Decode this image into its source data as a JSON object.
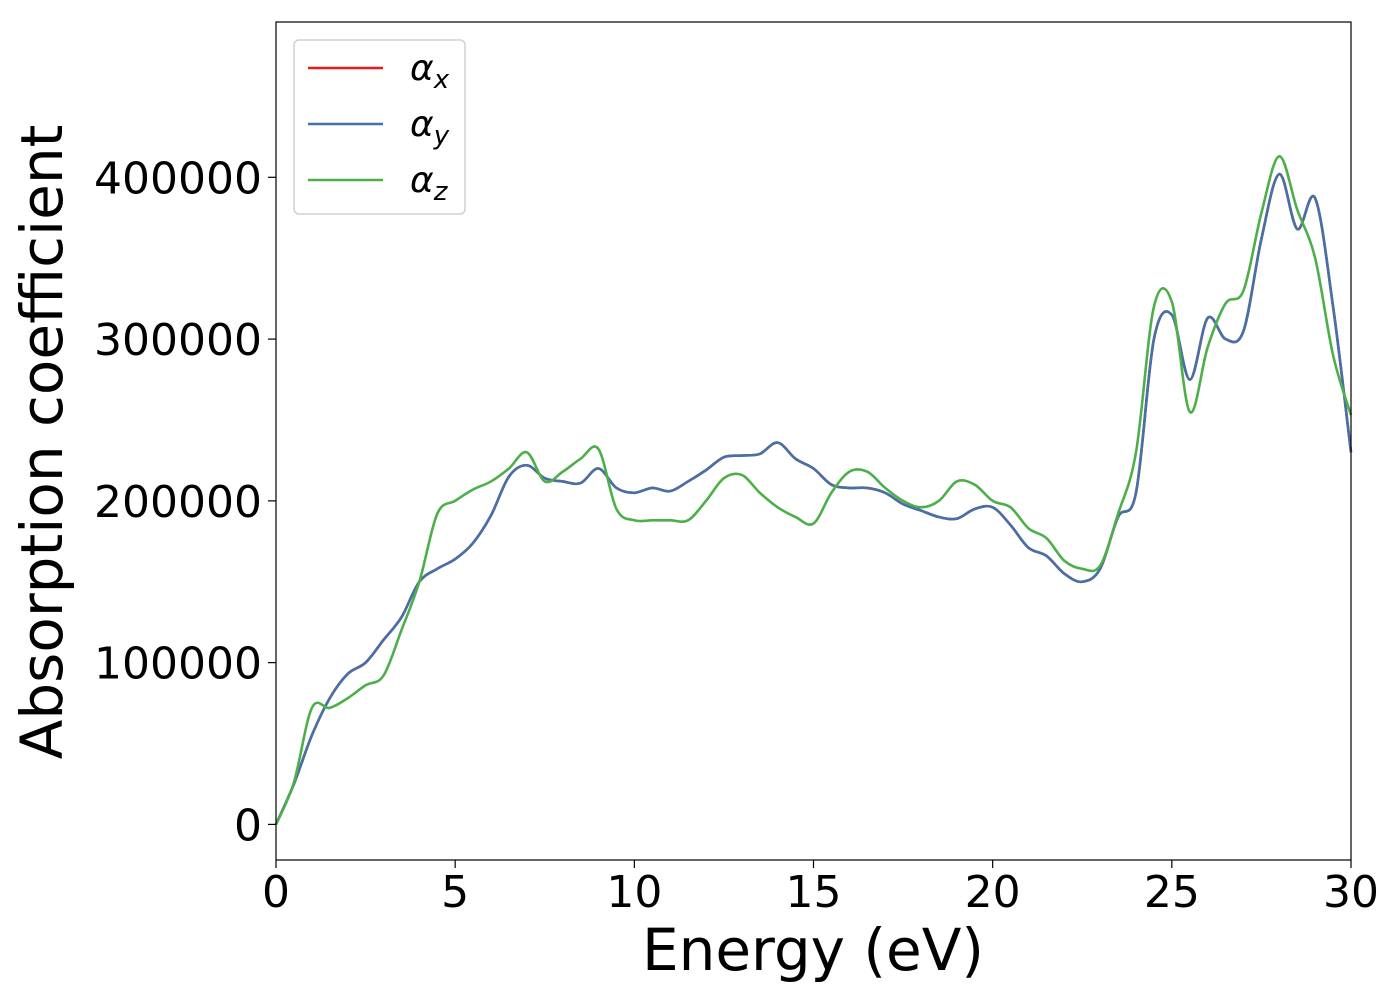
{
  "chart_data": {
    "type": "line",
    "xlabel": "Energy (eV)",
    "ylabel": "Absorption coefficient",
    "xlim": [
      0,
      30
    ],
    "ylim": [
      -22000,
      496000
    ],
    "xticks": [
      0,
      5,
      10,
      15,
      20,
      25,
      30
    ],
    "yticks": [
      0,
      100000,
      200000,
      300000,
      400000
    ],
    "xtick_labels": [
      "0",
      "5",
      "10",
      "15",
      "20",
      "25",
      "30"
    ],
    "ytick_labels": [
      "0",
      "100000",
      "200000",
      "300000",
      "400000"
    ],
    "grid": false,
    "legend_position": "top-left",
    "series": [
      {
        "name": "αx",
        "legend_base": "α",
        "legend_sub": "x",
        "color": "#e41a1c",
        "x": [
          0,
          0.5,
          1,
          1.5,
          2,
          2.5,
          3,
          3.5,
          4,
          4.5,
          5,
          5.5,
          6,
          6.5,
          7,
          7.5,
          8,
          8.5,
          9,
          9.5,
          10,
          10.5,
          11,
          11.5,
          12,
          12.5,
          13,
          13.5,
          14,
          14.5,
          15,
          15.5,
          16,
          16.5,
          17,
          17.5,
          18,
          18.5,
          19,
          19.5,
          20,
          20.5,
          21,
          21.5,
          22,
          22.5,
          23,
          23.5,
          24,
          24.5,
          25,
          25.5,
          26,
          26.5,
          27,
          27.5,
          28,
          28.5,
          29,
          29.5,
          30
        ],
        "y": [
          0,
          25000,
          55000,
          78000,
          93000,
          100000,
          114000,
          128000,
          150000,
          158000,
          164000,
          174000,
          191000,
          215000,
          222000,
          214000,
          212000,
          211000,
          220000,
          208000,
          205000,
          208000,
          206000,
          212000,
          219000,
          227000,
          228000,
          229000,
          236000,
          226000,
          220000,
          210000,
          208000,
          208000,
          205000,
          198000,
          194000,
          190000,
          189000,
          195000,
          196000,
          185000,
          171000,
          166000,
          155000,
          150000,
          158000,
          190000,
          205000,
          300000,
          315000,
          275000,
          313000,
          300000,
          305000,
          362000,
          402000,
          368000,
          387000,
          320000,
          230000
        ]
      },
      {
        "name": "αy",
        "legend_base": "α",
        "legend_sub": "y",
        "color": "#4472a8",
        "x": [
          0,
          0.5,
          1,
          1.5,
          2,
          2.5,
          3,
          3.5,
          4,
          4.5,
          5,
          5.5,
          6,
          6.5,
          7,
          7.5,
          8,
          8.5,
          9,
          9.5,
          10,
          10.5,
          11,
          11.5,
          12,
          12.5,
          13,
          13.5,
          14,
          14.5,
          15,
          15.5,
          16,
          16.5,
          17,
          17.5,
          18,
          18.5,
          19,
          19.5,
          20,
          20.5,
          21,
          21.5,
          22,
          22.5,
          23,
          23.5,
          24,
          24.5,
          25,
          25.5,
          26,
          26.5,
          27,
          27.5,
          28,
          28.5,
          29,
          29.5,
          30
        ],
        "y": [
          0,
          25000,
          55000,
          78000,
          93000,
          100000,
          114000,
          128000,
          150000,
          158000,
          164000,
          174000,
          191000,
          215000,
          222000,
          214000,
          212000,
          211000,
          220000,
          208000,
          205000,
          208000,
          206000,
          212000,
          219000,
          227000,
          228000,
          229000,
          236000,
          226000,
          220000,
          210000,
          208000,
          208000,
          205000,
          198000,
          194000,
          190000,
          189000,
          195000,
          196000,
          185000,
          171000,
          166000,
          155000,
          150000,
          158000,
          190000,
          205000,
          300000,
          315000,
          275000,
          313000,
          300000,
          305000,
          362000,
          402000,
          368000,
          387000,
          320000,
          230000
        ]
      },
      {
        "name": "αz",
        "legend_base": "α",
        "legend_sub": "z",
        "color": "#4daf4a",
        "x": [
          0,
          0.5,
          1,
          1.5,
          2,
          2.5,
          3,
          3.5,
          4,
          4.5,
          5,
          5.5,
          6,
          6.5,
          7,
          7.5,
          8,
          8.5,
          9,
          9.5,
          10,
          10.5,
          11,
          11.5,
          12,
          12.5,
          13,
          13.5,
          14,
          14.5,
          15,
          15.5,
          16,
          16.5,
          17,
          17.5,
          18,
          18.5,
          19,
          19.5,
          20,
          20.5,
          21,
          21.5,
          22,
          22.5,
          23,
          23.5,
          24,
          24.5,
          25,
          25.5,
          26,
          26.5,
          27,
          27.5,
          28,
          28.5,
          29,
          29.5,
          30
        ],
        "y": [
          0,
          26000,
          72000,
          72000,
          78000,
          86000,
          92000,
          120000,
          150000,
          192000,
          200000,
          207000,
          212000,
          220000,
          230000,
          212000,
          218000,
          226000,
          232000,
          195000,
          188000,
          188000,
          188000,
          188000,
          200000,
          214000,
          216000,
          205000,
          196000,
          190000,
          186000,
          205000,
          218000,
          218000,
          208000,
          200000,
          196000,
          200000,
          212000,
          210000,
          200000,
          196000,
          183000,
          177000,
          163000,
          158000,
          160000,
          192000,
          230000,
          320000,
          323000,
          255000,
          295000,
          322000,
          330000,
          378000,
          413000,
          380000,
          350000,
          290000,
          253000
        ]
      }
    ]
  }
}
